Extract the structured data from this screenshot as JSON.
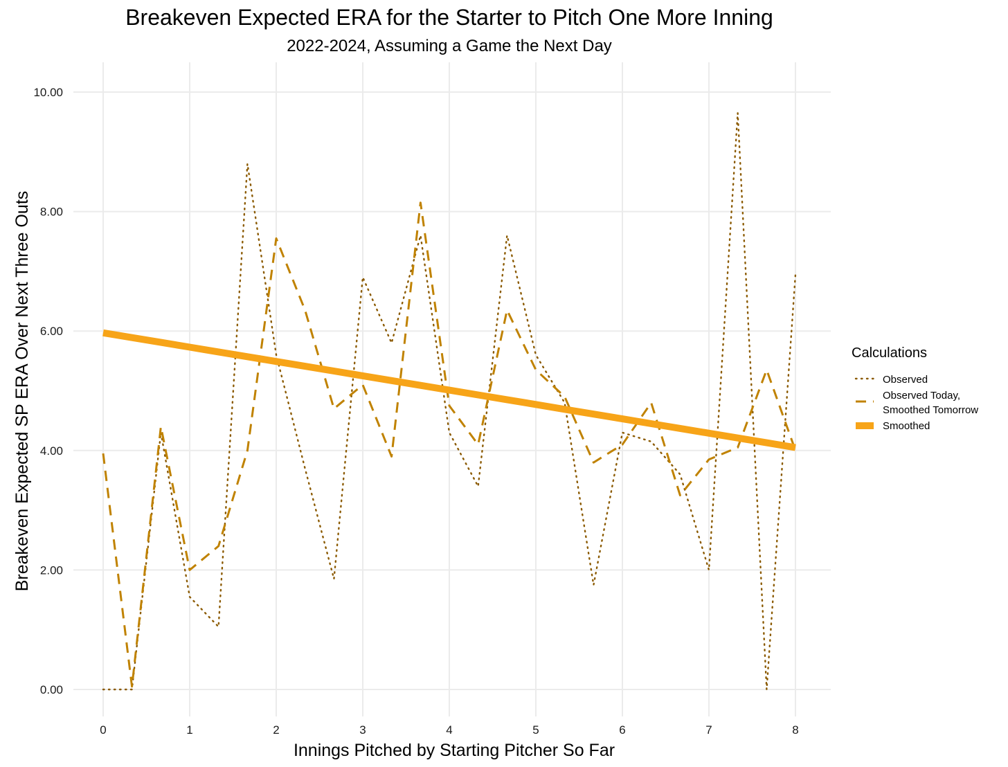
{
  "chart_data": {
    "type": "line",
    "title": "Breakeven Expected ERA for the Starter to Pitch One More Inning",
    "subtitle": "2022-2024, Assuming a Game the Next Day",
    "xlabel": "Innings Pitched by Starting Pitcher So Far",
    "ylabel": "Breakeven Expected SP ERA Over Next Three Outs",
    "xlim": [
      -0.15,
      8.4
    ],
    "ylim": [
      -0.45,
      10.5
    ],
    "x_ticks": [
      0,
      1,
      2,
      3,
      4,
      5,
      6,
      7,
      8
    ],
    "x_tick_labels": [
      "0",
      "1",
      "2",
      "3",
      "4",
      "5",
      "6",
      "7",
      "8"
    ],
    "y_ticks": [
      0,
      2,
      4,
      6,
      8,
      10
    ],
    "y_tick_labels": [
      "0.00",
      "2.00",
      "4.00",
      "6.00",
      "8.00",
      "10.00"
    ],
    "grid": true,
    "legend": {
      "title": "Calculations",
      "position": "right",
      "entries": [
        {
          "label_lines": [
            "Observed"
          ]
        },
        {
          "label_lines": [
            "Observed Today,",
            "Smoothed Tomorrow"
          ]
        },
        {
          "label_lines": [
            "Smoothed"
          ]
        }
      ]
    },
    "x": [
      0,
      0.333,
      0.667,
      1,
      1.333,
      1.667,
      2,
      2.333,
      2.667,
      3,
      3.333,
      3.667,
      4,
      4.333,
      4.667,
      5,
      5.333,
      5.667,
      6,
      6.333,
      6.667,
      7,
      7.333,
      7.667,
      8
    ],
    "series": [
      {
        "name": "Observed",
        "style": "dotted",
        "color": "#8B5A00",
        "values": [
          0.0,
          0.0,
          4.3,
          1.55,
          1.05,
          8.8,
          5.6,
          3.7,
          1.85,
          6.9,
          5.8,
          7.6,
          4.3,
          3.4,
          7.6,
          5.6,
          4.8,
          1.75,
          4.3,
          4.15,
          3.6,
          2.0,
          9.65,
          0.0,
          6.95
        ]
      },
      {
        "name": "Observed Today, Smoothed Tomorrow",
        "style": "dashed",
        "color": "#C08200",
        "values": [
          3.95,
          0.05,
          4.4,
          2.0,
          2.4,
          4.0,
          7.55,
          6.35,
          4.7,
          5.1,
          3.9,
          8.15,
          4.75,
          4.1,
          6.35,
          5.35,
          4.9,
          3.8,
          4.1,
          4.8,
          3.25,
          3.85,
          4.05,
          5.35,
          4.0
        ]
      },
      {
        "name": "Smoothed",
        "style": "solid-thick",
        "color": "#F7A418",
        "values": [
          5.97,
          5.89,
          5.81,
          5.73,
          5.65,
          5.57,
          5.49,
          5.41,
          5.33,
          5.25,
          5.17,
          5.09,
          5.01,
          4.93,
          4.85,
          4.77,
          4.69,
          4.61,
          4.53,
          4.45,
          4.37,
          4.29,
          4.21,
          4.13,
          4.05
        ]
      }
    ]
  }
}
